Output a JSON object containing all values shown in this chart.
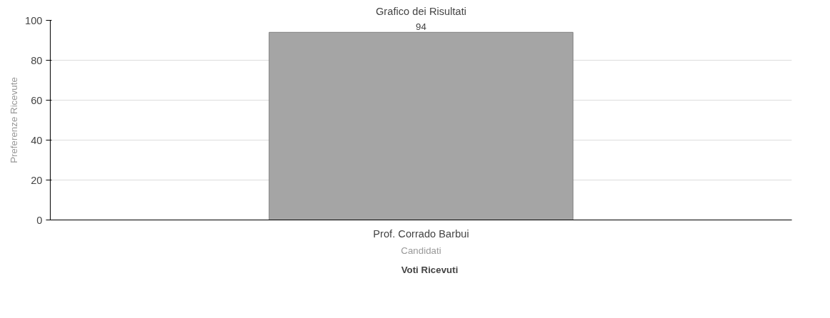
{
  "chart_data": {
    "type": "bar",
    "title": "Grafico dei Risultati",
    "xlabel": "Candidati",
    "ylabel": "Preferenze Ricevute",
    "categories": [
      "Prof. Corrado Barbui"
    ],
    "series": [
      {
        "name": "Voti Ricevuti",
        "color": "#a5a5a5",
        "values": [
          94
        ]
      }
    ],
    "ylim": [
      0,
      100
    ],
    "yticks": [
      0,
      20,
      40,
      60,
      80,
      100
    ],
    "grid": "y",
    "legend": "bottom",
    "data_labels": true
  }
}
